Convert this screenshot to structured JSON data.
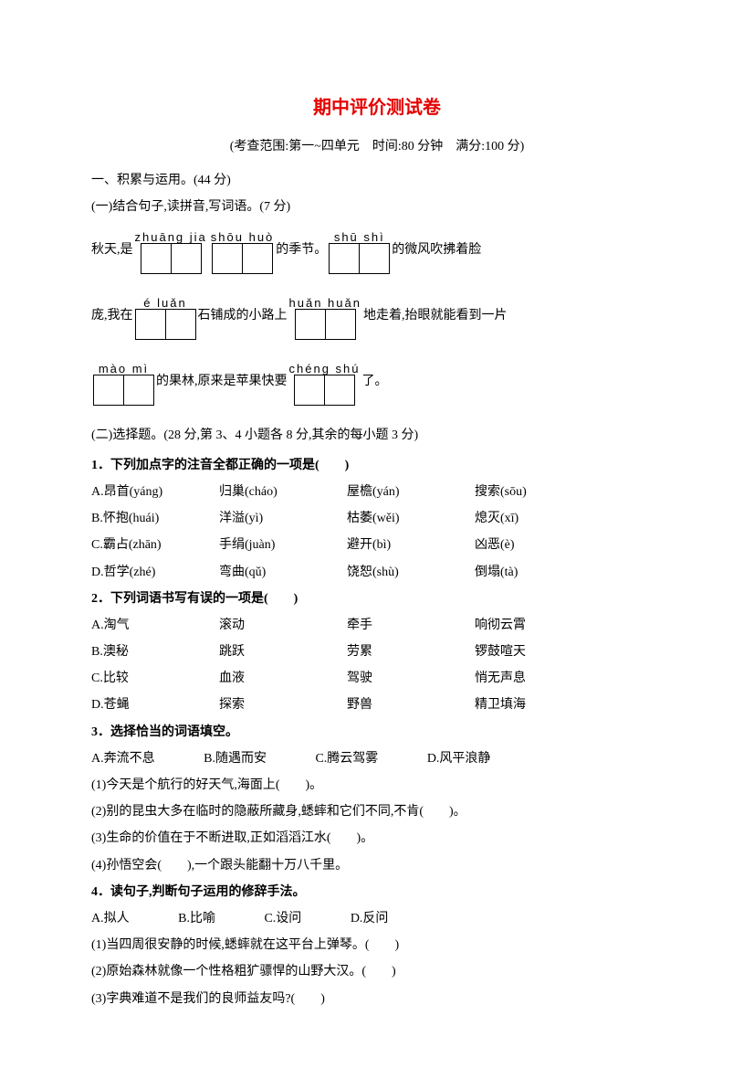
{
  "title": "期中评价测试卷",
  "subtitle": "(考查范围:第一~四单元　时间:80 分钟　满分:100 分)",
  "s1": {
    "head": "一、积累与运用。(44 分)",
    "p1": {
      "head": "(一)结合句子,读拼音,写词语。(7 分)",
      "l1": {
        "a": "秋天,是",
        "p1": "zhuāng jia",
        "p2": "shōu huò",
        "b": "的季节。",
        "p3": "shū   shì",
        "c": "的微风吹拂着脸"
      },
      "l2": {
        "a": "庞,我在",
        "p1": "é    luǎn",
        "b": "石铺成的小路上",
        "p2": "huǎn huǎn",
        "c": "地走着,抬眼就能看到一片"
      },
      "l3": {
        "p1": "mào   mì",
        "a": "的果林,原来是苹果快要",
        "p2": "chéng shú",
        "b": "了。"
      }
    },
    "p2": {
      "head": "(二)选择题。(28 分,第 3、4 小题各 8 分,其余的每小题 3 分)",
      "q1": {
        "stem": "1．下列加点字的注音全都正确的一项是(　　)",
        "A": [
          "A.昂首(yáng)",
          "归巢(cháo)",
          "屋檐(yán)",
          "搜索(sōu)"
        ],
        "B": [
          "B.怀抱(huái)",
          "洋溢(yì)",
          "枯萎(wěi)",
          "熄灭(xī)"
        ],
        "C": [
          "C.霸占(zhān)",
          "手绢(juàn)",
          "避开(bì)",
          "凶恶(è)"
        ],
        "D": [
          "D.哲学(zhé)",
          "弯曲(qǔ)",
          "饶恕(shù)",
          "倒塌(tà)"
        ]
      },
      "q2": {
        "stem": "2．下列词语书写有误的一项是(　　)",
        "A": [
          "A.淘气",
          "滚动",
          "牵手",
          "响彻云霄"
        ],
        "B": [
          "B.澳秘",
          "跳跃",
          "劳累",
          "锣鼓喧天"
        ],
        "C": [
          "C.比较",
          "血液",
          "驾驶",
          "悄无声息"
        ],
        "D": [
          "D.苍蝇",
          "探索",
          "野兽",
          "精卫填海"
        ]
      },
      "q3": {
        "stem": "3．选择恰当的词语填空。",
        "opts": {
          "A": "A.奔流不息",
          "B": "B.随遇而安",
          "C": "C.腾云驾雾",
          "D": "D.风平浪静"
        },
        "i1": "(1)今天是个航行的好天气,海面上(　　)。",
        "i2": "(2)别的昆虫大多在临时的隐蔽所藏身,蟋蟀和它们不同,不肯(　　)。",
        "i3": "(3)生命的价值在于不断进取,正如滔滔江水(　　)。",
        "i4": "(4)孙悟空会(　　),一个跟头能翻十万八千里。"
      },
      "q4": {
        "stem": "4．读句子,判断句子运用的修辞手法。",
        "opts": {
          "A": "A.拟人",
          "B": "B.比喻",
          "C": "C.设问",
          "D": "D.反问"
        },
        "i1": "(1)当四周很安静的时候,蟋蟀就在这平台上弹琴。(　　)",
        "i2": "(2)原始森林就像一个性格粗犷骠悍的山野大汉。(　　)",
        "i3": "(3)字典难道不是我们的良师益友吗?(　　)"
      }
    }
  }
}
